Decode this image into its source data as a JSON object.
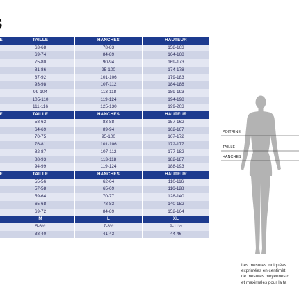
{
  "title": "S",
  "table": {
    "sections": [
      {
        "headers": [
          "RINE",
          "TAILLE",
          "HANCHES",
          "HAUTEUR"
        ],
        "rows": [
          [
            "2",
            "63-68",
            "78-83",
            "158-163"
          ],
          [
            "8",
            "69-74",
            "84-89",
            "164-168"
          ],
          [
            "4",
            "75-80",
            "90-94",
            "169-173"
          ],
          [
            "0",
            "81-86",
            "95-100",
            "174-178"
          ],
          [
            "6",
            "87-92",
            "101-106",
            "179-183"
          ],
          [
            "2",
            "93-98",
            "107-112",
            "184-188"
          ],
          [
            "8",
            "99-104",
            "113-118",
            "189-193"
          ],
          [
            "4",
            "105-110",
            "119-124",
            "194-198"
          ],
          [
            "0",
            "111-116",
            "125-130",
            "199-203"
          ]
        ]
      },
      {
        "headers": [
          "RINE",
          "TAILLE",
          "HANCHES",
          "HAUTEUR"
        ],
        "rows": [
          [
            "2",
            "58-63",
            "83-88",
            "157-162"
          ],
          [
            "8",
            "64-69",
            "89-94",
            "162-167"
          ],
          [
            "4",
            "70-75",
            "95-100",
            "167-172"
          ],
          [
            "0",
            "76-81",
            "101-106",
            "172-177"
          ],
          [
            "6",
            "82-87",
            "107-112",
            "177-182"
          ],
          [
            "2",
            "88-93",
            "113-118",
            "182-187"
          ],
          [
            "8",
            "94-99",
            "119-124",
            "188-193"
          ]
        ]
      },
      {
        "headers": [
          "RINE",
          "TAILLE",
          "HANCHES",
          "HAUTEUR"
        ],
        "rows": [
          [
            "6",
            "55-56",
            "62-64",
            "110-116"
          ],
          [
            "4",
            "57-58",
            "65-69",
            "116-128"
          ],
          [
            "1",
            "59-64",
            "70-77",
            "128-140"
          ],
          [
            "9",
            "65-68",
            "78-83",
            "140-152"
          ],
          [
            "6",
            "69-72",
            "84-89",
            "152-164"
          ]
        ]
      },
      {
        "headers": [
          "",
          "M",
          "L",
          "XL"
        ],
        "rows": [
          [
            "½",
            "5-6½",
            "7-8½",
            "9-11½"
          ],
          [
            "7",
            "38-40",
            "41-43",
            "44-46"
          ]
        ]
      }
    ]
  },
  "figure": {
    "labels": {
      "chest": "POITRINE",
      "waist": "TAILLE",
      "hips": "HANCHES"
    }
  },
  "note": {
    "lines": [
      "Les mesures indiquées",
      "exprimées en centimèt",
      "de mesures moyennes c",
      "et maximales pour la ta"
    ]
  },
  "colors": {
    "header": "#1d3b8f",
    "row_light": "#e3e6f2",
    "row_dark": "#cfd4e6",
    "figure": "#b3b3b3"
  }
}
